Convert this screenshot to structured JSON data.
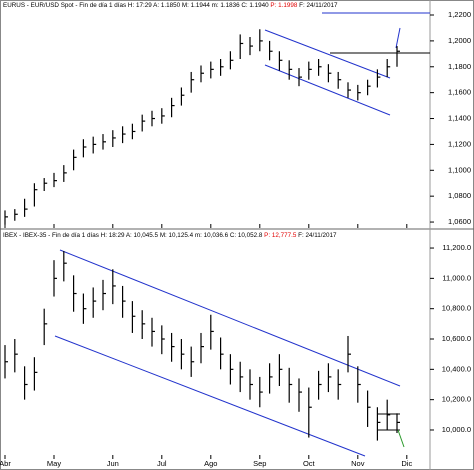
{
  "chart_data": [
    {
      "type": "ohlc",
      "title": "EURUS - EUR/USD Spot - Fin de día 1 días H: 17:29 A: 1.1850 M: 1.1944 m: 1.1836 C: 1.1940 ",
      "title_highlight": "P: 1.1998",
      "title_end": " F: 24/11/2017",
      "color": "#000000",
      "highlight_color": "#e00000",
      "high": [
        1.069,
        1.07,
        1.078,
        1.09,
        1.094,
        1.098,
        1.104,
        1.116,
        1.124,
        1.126,
        1.128,
        1.131,
        1.134,
        1.136,
        1.143,
        1.146,
        1.148,
        1.156,
        1.164,
        1.176,
        1.181,
        1.184,
        1.186,
        1.192,
        1.205,
        1.203,
        1.209,
        1.2,
        1.192,
        1.185,
        1.179,
        1.184,
        1.186,
        1.182,
        1.176,
        1.168,
        1.166,
        1.17,
        1.178,
        1.186,
        1.196,
        null
      ],
      "low": [
        1.058,
        1.061,
        1.064,
        1.072,
        1.084,
        1.087,
        1.091,
        1.1,
        1.11,
        1.113,
        1.116,
        1.118,
        1.121,
        1.124,
        1.13,
        1.134,
        1.136,
        1.141,
        1.15,
        1.16,
        1.168,
        1.171,
        1.173,
        1.178,
        1.186,
        1.189,
        1.192,
        1.185,
        1.177,
        1.17,
        1.165,
        1.17,
        1.173,
        1.168,
        1.163,
        1.156,
        1.154,
        1.158,
        1.164,
        1.172,
        1.18,
        null
      ],
      "close": [
        1.064,
        1.066,
        1.07,
        1.085,
        1.09,
        1.092,
        1.098,
        1.11,
        1.118,
        1.12,
        1.122,
        1.125,
        1.128,
        1.13,
        1.138,
        1.14,
        1.142,
        1.15,
        1.158,
        1.17,
        1.175,
        1.178,
        1.18,
        1.185,
        1.198,
        1.196,
        1.2,
        1.192,
        1.185,
        1.178,
        1.172,
        1.178,
        1.18,
        1.175,
        1.17,
        1.162,
        1.16,
        1.165,
        1.172,
        1.18,
        1.192,
        null
      ],
      "ylim": [
        1.0554,
        1.2316
      ],
      "yticks": [
        {
          "value": 1.06,
          "label": "1,0600"
        },
        {
          "value": 1.08,
          "label": "1,0800"
        },
        {
          "value": 1.1,
          "label": "1,1000"
        },
        {
          "value": 1.12,
          "label": "1,1200"
        },
        {
          "value": 1.14,
          "label": "1,1400"
        },
        {
          "value": 1.16,
          "label": "1,1600"
        },
        {
          "value": 1.18,
          "label": "1,1800"
        },
        {
          "value": 1.2,
          "label": "1,2000"
        },
        {
          "value": 1.22,
          "label": "1,2200"
        }
      ]
    },
    {
      "type": "ohlc",
      "title": "IBEX - IBEX-35 - Fin de día 1 días H: 18:29 A: 10,045.5 M: 10,125.4 m: 10,036.6 C: 10,052.8 ",
      "title_highlight": "P: 12,777.5",
      "title_end": " F: 24/11/2017",
      "color": "#000000",
      "highlight_color": "#e00000",
      "categories": [
        "Abr",
        null,
        null,
        null,
        null,
        "May",
        null,
        null,
        null,
        null,
        null,
        "Jun",
        null,
        null,
        null,
        null,
        "Jul",
        null,
        null,
        null,
        null,
        "Ago",
        null,
        null,
        null,
        null,
        "Sep",
        null,
        null,
        null,
        null,
        "Oct",
        null,
        null,
        null,
        null,
        "Nov",
        null,
        null,
        null,
        null,
        "Dic"
      ],
      "high": [
        10560,
        10600,
        10420,
        10480,
        10800,
        11120,
        11180,
        11020,
        10900,
        10940,
        10990,
        11060,
        10950,
        10850,
        10790,
        10740,
        10690,
        10640,
        10600,
        10550,
        10640,
        10760,
        10610,
        10500,
        10450,
        10400,
        10350,
        10440,
        10500,
        10410,
        10340,
        10280,
        10390,
        10440,
        10400,
        10620,
        10420,
        10260,
        10150,
        10200,
        10110,
        null
      ],
      "low": [
        10340,
        10380,
        10200,
        10260,
        10560,
        10880,
        10980,
        10780,
        10700,
        10740,
        10790,
        10830,
        10740,
        10640,
        10600,
        10550,
        10500,
        10450,
        10400,
        10350,
        10440,
        10530,
        10400,
        10300,
        10250,
        10200,
        10150,
        10240,
        10290,
        10180,
        10120,
        9950,
        10200,
        10250,
        10200,
        10380,
        10180,
        10020,
        9930,
        10000,
        9980,
        null
      ],
      "close": [
        10450,
        10500,
        10300,
        10380,
        10700,
        11000,
        11100,
        10900,
        10800,
        10850,
        10900,
        10950,
        10850,
        10750,
        10700,
        10650,
        10600,
        10550,
        10500,
        10450,
        10550,
        10650,
        10500,
        10400,
        10350,
        10300,
        10250,
        10350,
        10400,
        10300,
        10250,
        10150,
        10300,
        10350,
        10300,
        10500,
        10300,
        10150,
        10050,
        10100,
        10050,
        null
      ],
      "ylim": [
        9835,
        11253
      ],
      "yticks": [
        {
          "value": 10000,
          "label": "10,000.0"
        },
        {
          "value": 10200,
          "label": "10,200.0"
        },
        {
          "value": 10400,
          "label": "10,400.0"
        },
        {
          "value": 10600,
          "label": "10,600.0"
        },
        {
          "value": 10800,
          "label": "10,800.0"
        },
        {
          "value": 11000,
          "label": "11,000.0"
        },
        {
          "value": 11200,
          "label": "11,200.0"
        }
      ]
    }
  ]
}
